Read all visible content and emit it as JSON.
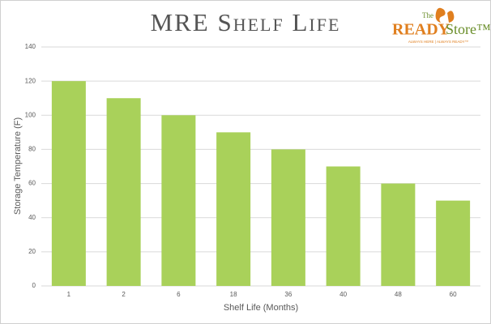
{
  "chart_data": {
    "type": "bar",
    "title": "MRE Shelf Life",
    "x_label": "Shelf Life (Months)",
    "y_label": "Storage Temperature (F)",
    "categories": [
      "1",
      "2",
      "6",
      "18",
      "36",
      "40",
      "48",
      "60"
    ],
    "values": [
      120,
      110,
      100,
      90,
      80,
      70,
      60,
      50
    ],
    "color": "#a9d15a",
    "ylim": [
      0,
      140
    ],
    "yticks": [
      0,
      20,
      40,
      60,
      80,
      100,
      120,
      140
    ],
    "grid": true,
    "logo": {
      "the": "The",
      "ready": "READY",
      "store": "Store™",
      "tagline": "ALWAYS HERE | ALWAYS READY™"
    }
  }
}
